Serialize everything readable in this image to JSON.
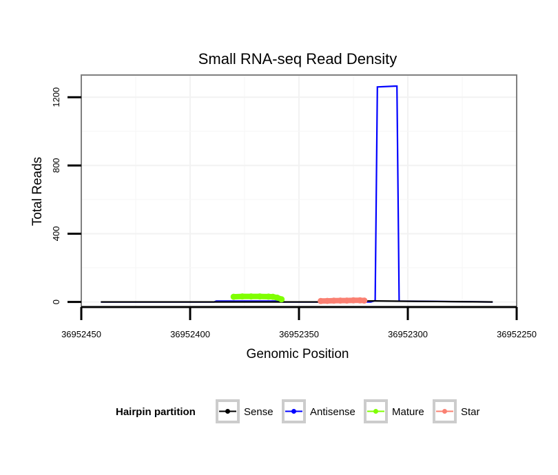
{
  "chart_data": {
    "type": "line",
    "title": "Small RNA-seq Read Density",
    "xlabel": "Genomic Position",
    "ylabel": "Total Reads",
    "x_reversed": true,
    "xlim": [
      36952450,
      36952250
    ],
    "ylim": [
      -30,
      1330
    ],
    "x_ticks": [
      36952450,
      36952400,
      36952350,
      36952300,
      36952250
    ],
    "x_tick_labels": [
      "36952450",
      "36952400",
      "36952350",
      "36952300",
      "36952250"
    ],
    "y_ticks": [
      0,
      400,
      800,
      1200
    ],
    "y_tick_labels": [
      "0",
      "400",
      "800",
      "1200"
    ],
    "grid": true,
    "legend": {
      "title": "Hairpin partition",
      "position": "bottom",
      "entries": [
        {
          "name": "Sense",
          "color": "#000000"
        },
        {
          "name": "Antisense",
          "color": "#0000ff"
        },
        {
          "name": "Mature",
          "color": "#7fff00"
        },
        {
          "name": "Star",
          "color": "#fa8072"
        }
      ]
    },
    "series": [
      {
        "name": "Antisense",
        "color": "#0000ff",
        "x": [
          36952441,
          36952389,
          36952388,
          36952359,
          36952358,
          36952317,
          36952315,
          36952314,
          36952306,
          36952305,
          36952304,
          36952261
        ],
        "y": [
          0,
          0,
          5,
          5,
          0,
          0,
          8,
          1260,
          1265,
          1265,
          5,
          0
        ]
      },
      {
        "name": "Sense",
        "color": "#000000",
        "x": [
          36952441,
          36952360,
          36952340,
          36952330,
          36952322,
          36952315,
          36952300,
          36952280,
          36952261
        ],
        "y": [
          0,
          0,
          0,
          3,
          5,
          6,
          4,
          2,
          0
        ]
      },
      {
        "name": "Mature",
        "color": "#7fff00",
        "x": [
          36952380,
          36952376,
          36952372,
          36952368,
          36952364,
          36952362,
          36952360,
          36952358
        ],
        "y": [
          30,
          32,
          32,
          32,
          31,
          30,
          25,
          15
        ]
      },
      {
        "name": "Star",
        "color": "#fa8072",
        "x": [
          36952340,
          36952337,
          36952334,
          36952331,
          36952328,
          36952325,
          36952322,
          36952320
        ],
        "y": [
          5,
          6,
          7,
          8,
          8,
          9,
          9,
          8
        ]
      }
    ]
  }
}
